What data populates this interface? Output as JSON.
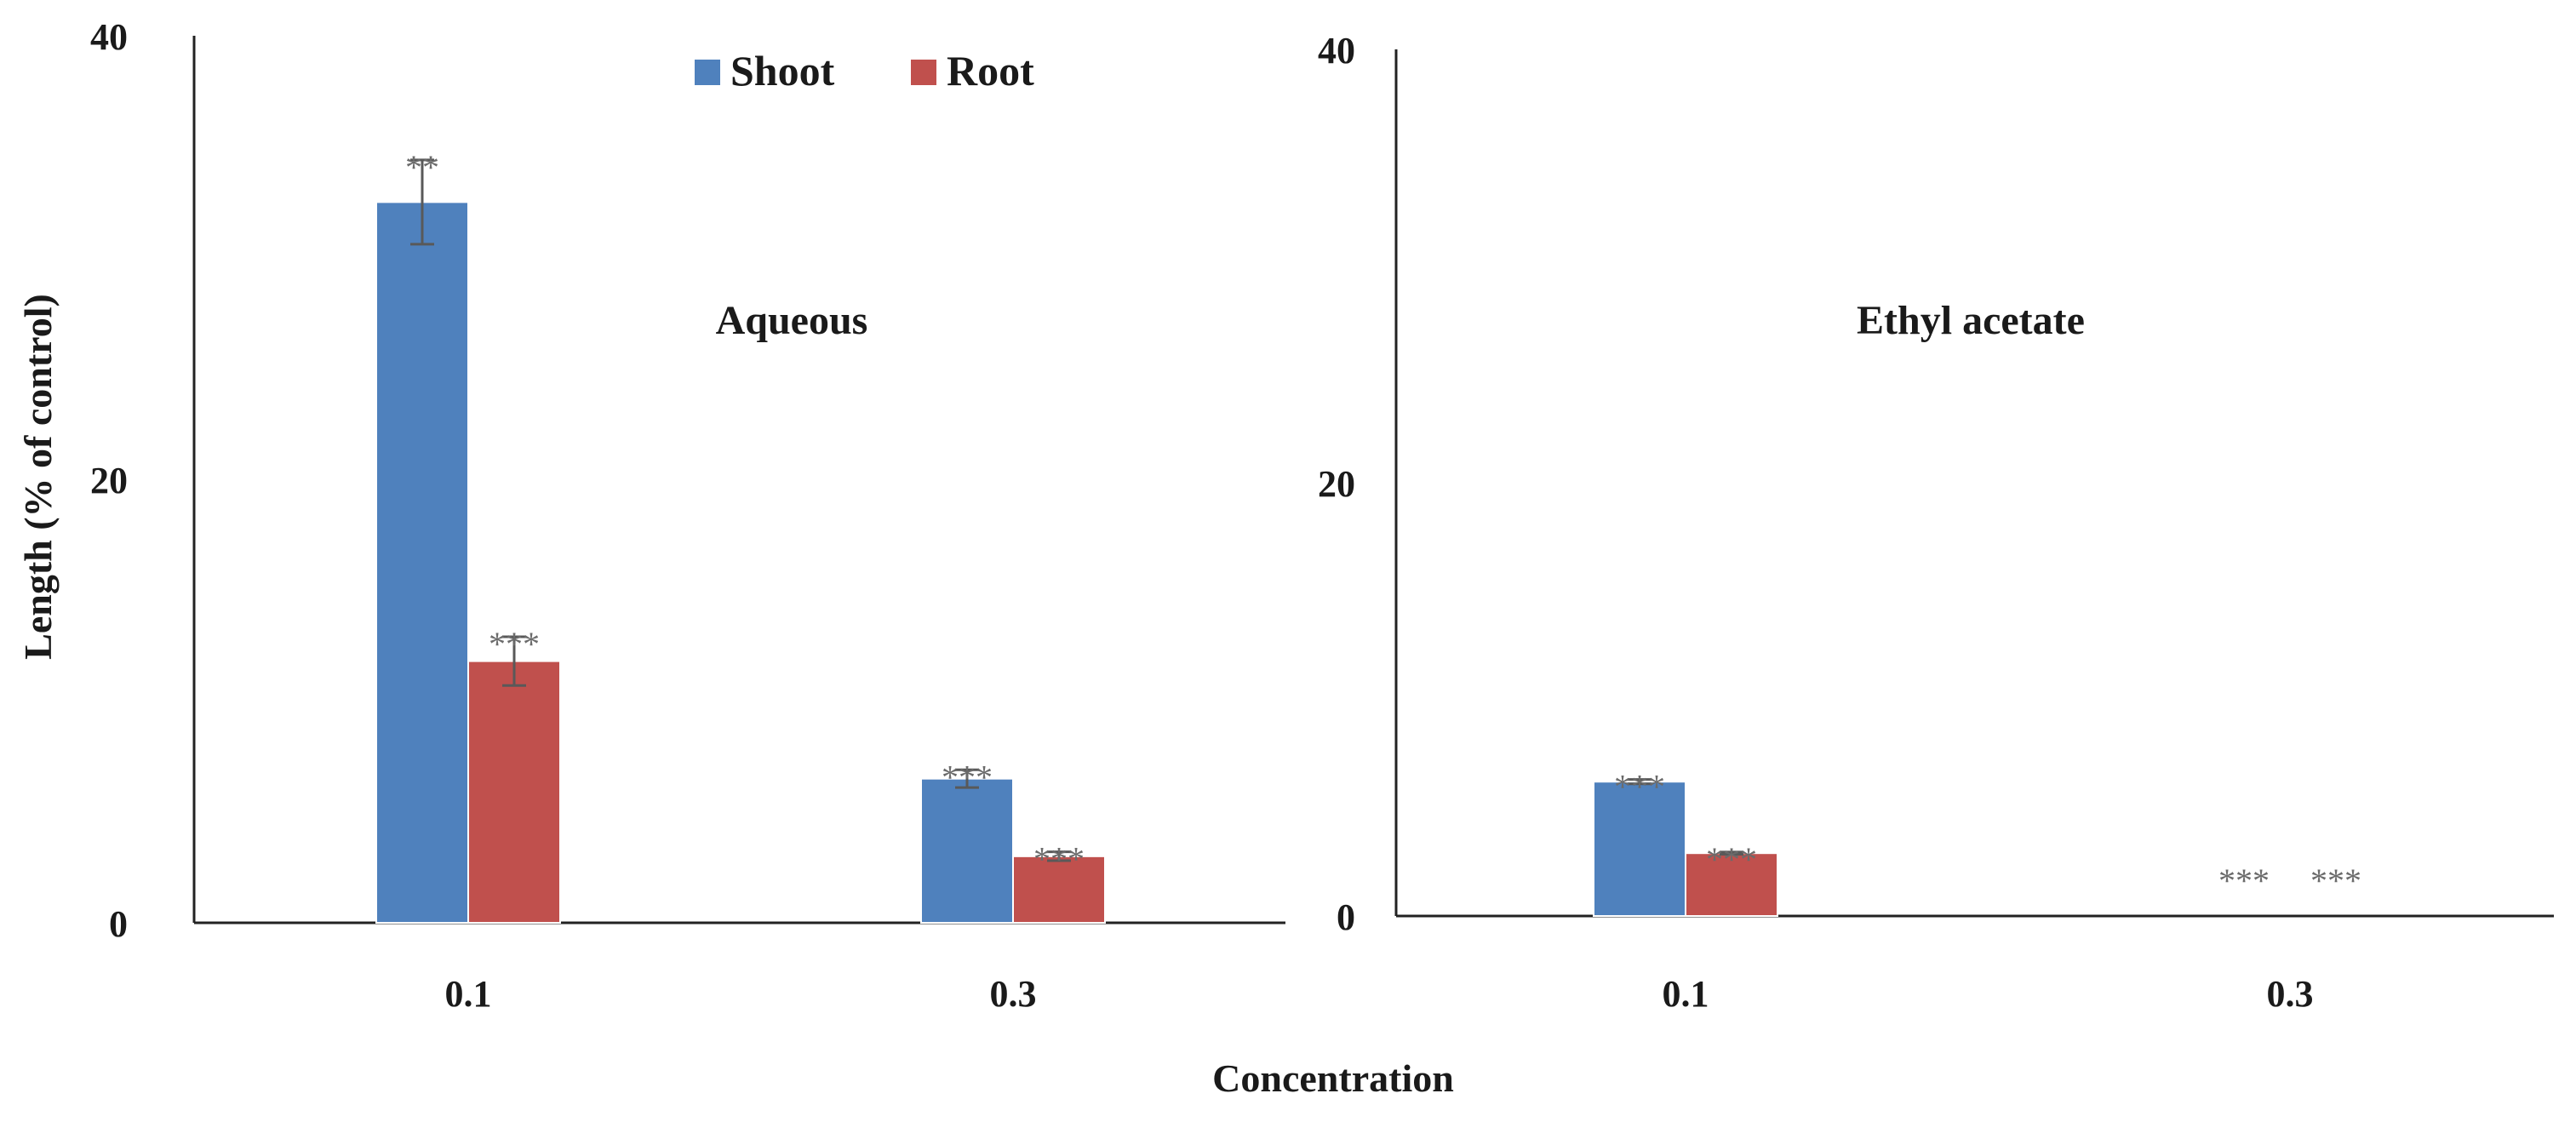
{
  "colors": {
    "shoot": "#4F81BD",
    "root": "#C0504D",
    "axis": "#222222",
    "error": "#595959",
    "significance": "#6b6b6b"
  },
  "legend": {
    "position": "top-center",
    "items": [
      {
        "label": "Shoot",
        "color_key": "shoot"
      },
      {
        "label": "Root",
        "color_key": "root"
      }
    ]
  },
  "xlabel": "Concentration",
  "ylabel": "Length (% of control)",
  "chart_data": [
    {
      "type": "bar",
      "title": "Aqueous",
      "categories": [
        "0.1",
        "0.3"
      ],
      "ylim": [
        0,
        40
      ],
      "yticks": [
        "0",
        "20",
        "40"
      ],
      "grid": false,
      "series": [
        {
          "name": "Shoot",
          "values": [
            32.5,
            6.5
          ],
          "errors": [
            1.9,
            0.4
          ],
          "significance": [
            "**",
            "***"
          ]
        },
        {
          "name": "Root",
          "values": [
            11.8,
            3.0
          ],
          "errors": [
            1.1,
            0.2
          ],
          "significance": [
            "***",
            "***"
          ]
        }
      ]
    },
    {
      "type": "bar",
      "title": "Ethyl acetate",
      "categories": [
        "0.1",
        "0.3"
      ],
      "ylim": [
        0,
        40
      ],
      "yticks": [
        "0",
        "20",
        "40"
      ],
      "grid": false,
      "series": [
        {
          "name": "Shoot",
          "values": [
            6.2,
            0
          ],
          "errors": [
            0.1,
            0
          ],
          "significance": [
            "***",
            "***"
          ]
        },
        {
          "name": "Root",
          "values": [
            2.9,
            0
          ],
          "errors": [
            0.05,
            0
          ],
          "significance": [
            "***",
            "***"
          ]
        }
      ]
    }
  ]
}
